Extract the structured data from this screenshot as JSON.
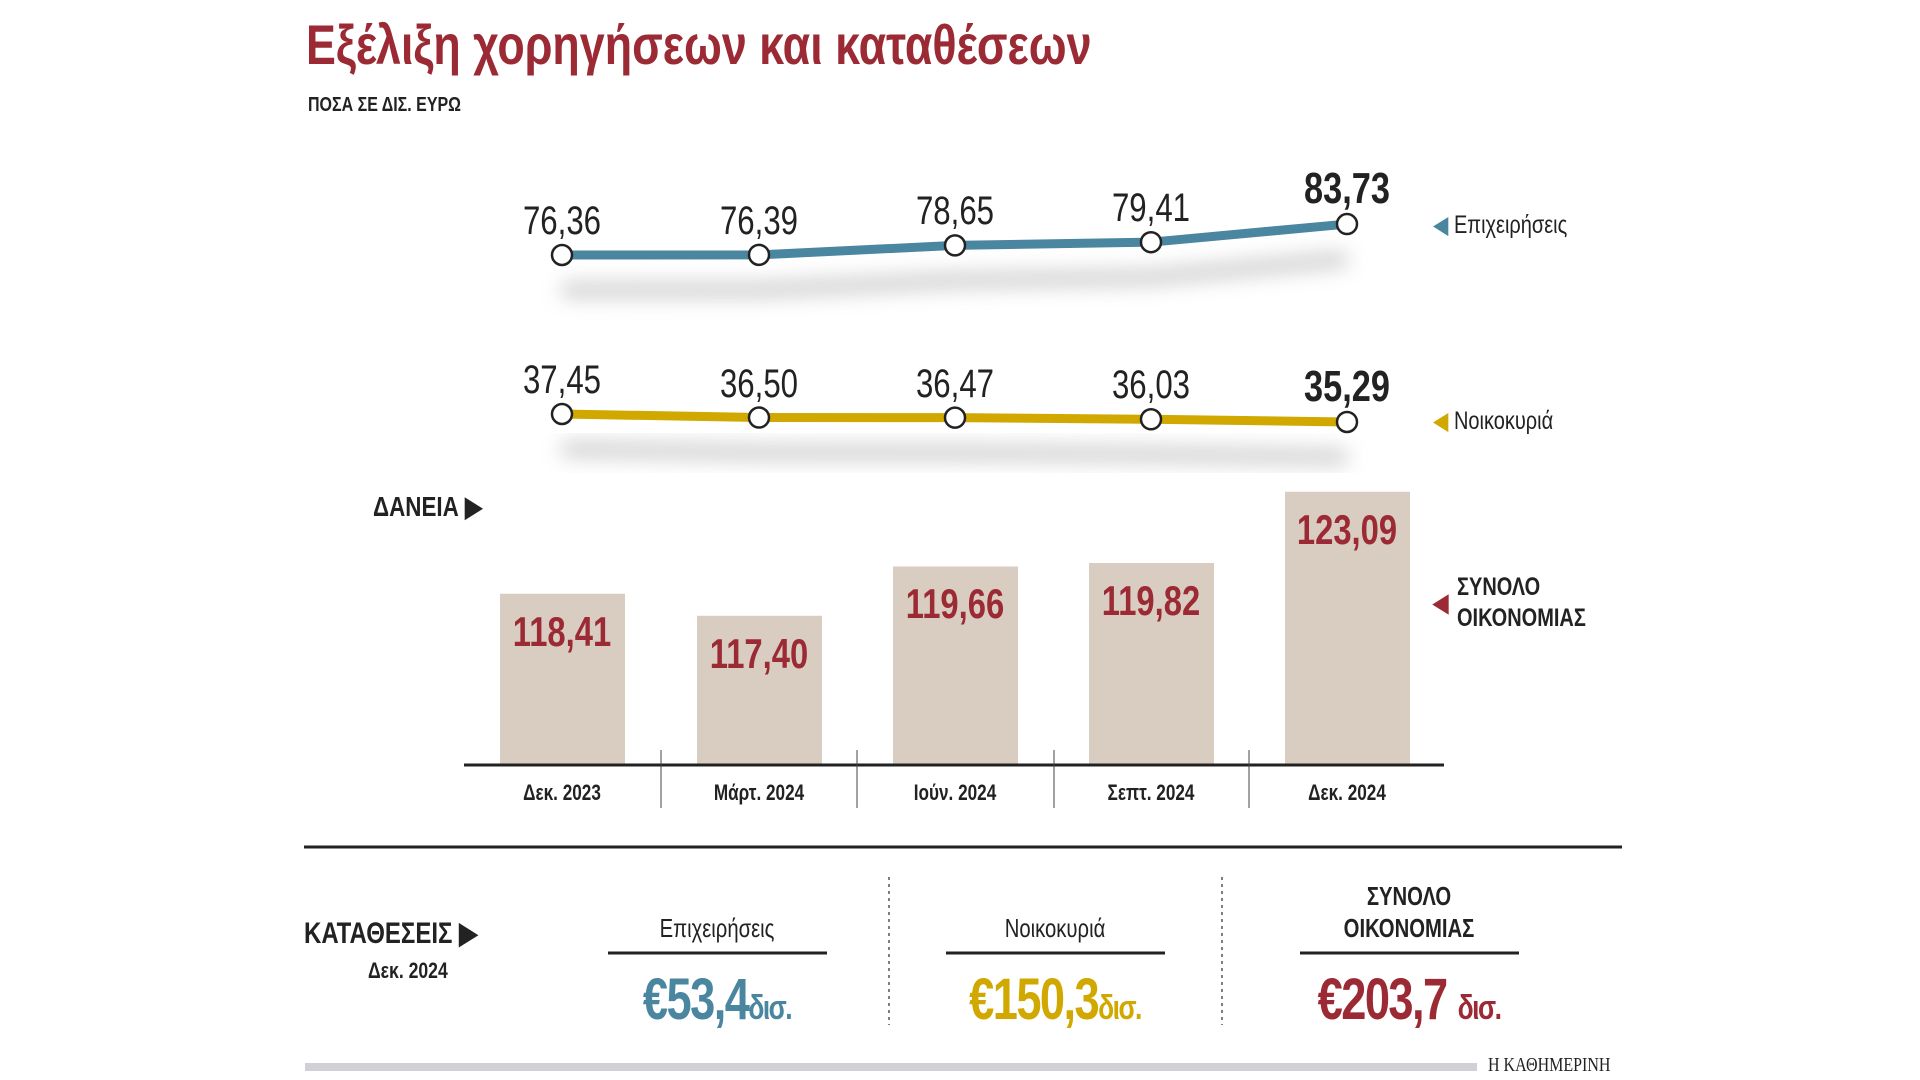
{
  "chart_data": {
    "type": "line+bar",
    "title": "Εξέλιξη χορηγήσεων και καταθέσεων",
    "subtitle": "ΠΟΣΑ ΣΕ ΔΙΣ. ΕΥΡΩ",
    "categories": [
      "Δεκ. 2023",
      "Μάρτ. 2024",
      "Ιούν. 2024",
      "Σεπτ. 2024",
      "Δεκ. 2024"
    ],
    "loans_label": "ΔΑΝΕΙΑ",
    "series": [
      {
        "name": "Επιχειρήσεις",
        "type": "line",
        "color": "#4a869f",
        "values": [
          76.36,
          76.39,
          78.65,
          79.41,
          83.73
        ],
        "labels": [
          "76,36",
          "76,39",
          "78,65",
          "79,41",
          "83,73"
        ]
      },
      {
        "name": "Νοικοκυριά",
        "type": "line",
        "color": "#d1a800",
        "values": [
          37.45,
          36.5,
          36.47,
          36.03,
          35.29
        ],
        "labels": [
          "37,45",
          "36,50",
          "36,47",
          "36,03",
          "35,29"
        ]
      },
      {
        "name": "ΣΥΝΟΛΟ ΟΙΚΟΝΟΜΙΑΣ",
        "name_lines": [
          "ΣΥΝΟΛΟ",
          "ΟΙΚΟΝΟΜΙΑΣ"
        ],
        "type": "bar",
        "color": "#d9cdc2",
        "label_color": "#9b2a35",
        "values": [
          118.41,
          117.4,
          119.66,
          119.82,
          123.09
        ],
        "labels": [
          "118,41",
          "117,40",
          "119,66",
          "119,82",
          "123,09"
        ]
      }
    ]
  },
  "deposits": {
    "label": "ΚΑΤΑΘΕΣΕΙΣ",
    "date": "Δεκ. 2024",
    "items": [
      {
        "label": "Επιχειρήσεις",
        "value": "€53,4",
        "unit": "δισ.",
        "color": "#4a869f"
      },
      {
        "label": "Νοικοκυριά",
        "value": "€150,3",
        "unit": "δισ.",
        "color": "#d1a800"
      },
      {
        "label_lines": [
          "ΣΥΝΟΛΟ",
          "ΟΙΚΟΝΟΜΙΑΣ"
        ],
        "value": "€203,7",
        "unit": "δισ.",
        "color": "#9b2a35"
      }
    ]
  },
  "source": "Η ΚΑΘΗΜΕΡΙΝΗ"
}
